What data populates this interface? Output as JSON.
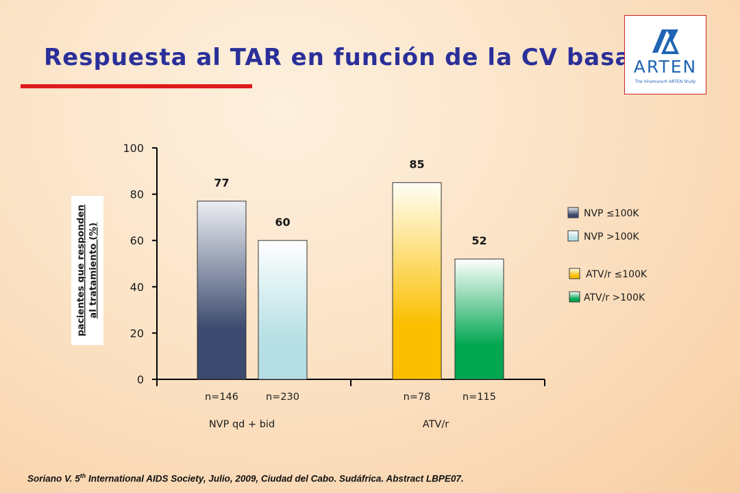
{
  "title": "Respuesta al TAR en función de la CV basal",
  "logo": {
    "text": "ARTEN",
    "subtext": "The Viramune® ARTEN Study",
    "color": "#1f64b4"
  },
  "citation": {
    "prefix": "Soriano V. 5",
    "sup": "th",
    "suffix": " International AIDS Society, Julio, 2009, Ciudad del Cabo. Sudáfrica. Abstract LBPE07."
  },
  "colors": {
    "title": "#2b2f9a",
    "underline": "#e01a1a",
    "axis": "#000000"
  },
  "chart_data": {
    "type": "bar",
    "ylabel": "pacientes que responden al tratamiento (%)",
    "ylabel_lines": [
      "pacientes que responden",
      "al tratamiento (%)"
    ],
    "ylim": [
      0,
      100
    ],
    "yticks": [
      "0",
      "20",
      "40",
      "60",
      "80",
      "100"
    ],
    "grid": false,
    "legend_position": "right",
    "groups": [
      {
        "label": "NVP qd + bid",
        "bars": [
          {
            "series": "NVP ≤100K",
            "value": 77,
            "label": "77",
            "n": "n=146"
          },
          {
            "series": "NVP >100K",
            "value": 60,
            "label": "60",
            "n": "n=230"
          }
        ]
      },
      {
        "label": "ATV/r",
        "bars": [
          {
            "series": "ATV/r ≤100K",
            "value": 85,
            "label": "85",
            "n": "n=78"
          },
          {
            "series": "ATV/r >100K",
            "value": 52,
            "label": "52",
            "n": "n=115"
          }
        ]
      }
    ],
    "series": [
      {
        "name": "NVP ≤100K",
        "color_top": "#eceef2",
        "color_bottom": "#3b4a6e"
      },
      {
        "name": "NVP >100K",
        "color_top": "#ffffff",
        "color_bottom": "#b5dfe4"
      },
      {
        "name": "ATV/r ≤100K",
        "color_top": "#fffef6",
        "color_bottom": "#fbbf00"
      },
      {
        "name": "ATV/r >100K",
        "color_top": "#ffffff",
        "color_bottom": "#00a650"
      }
    ]
  }
}
